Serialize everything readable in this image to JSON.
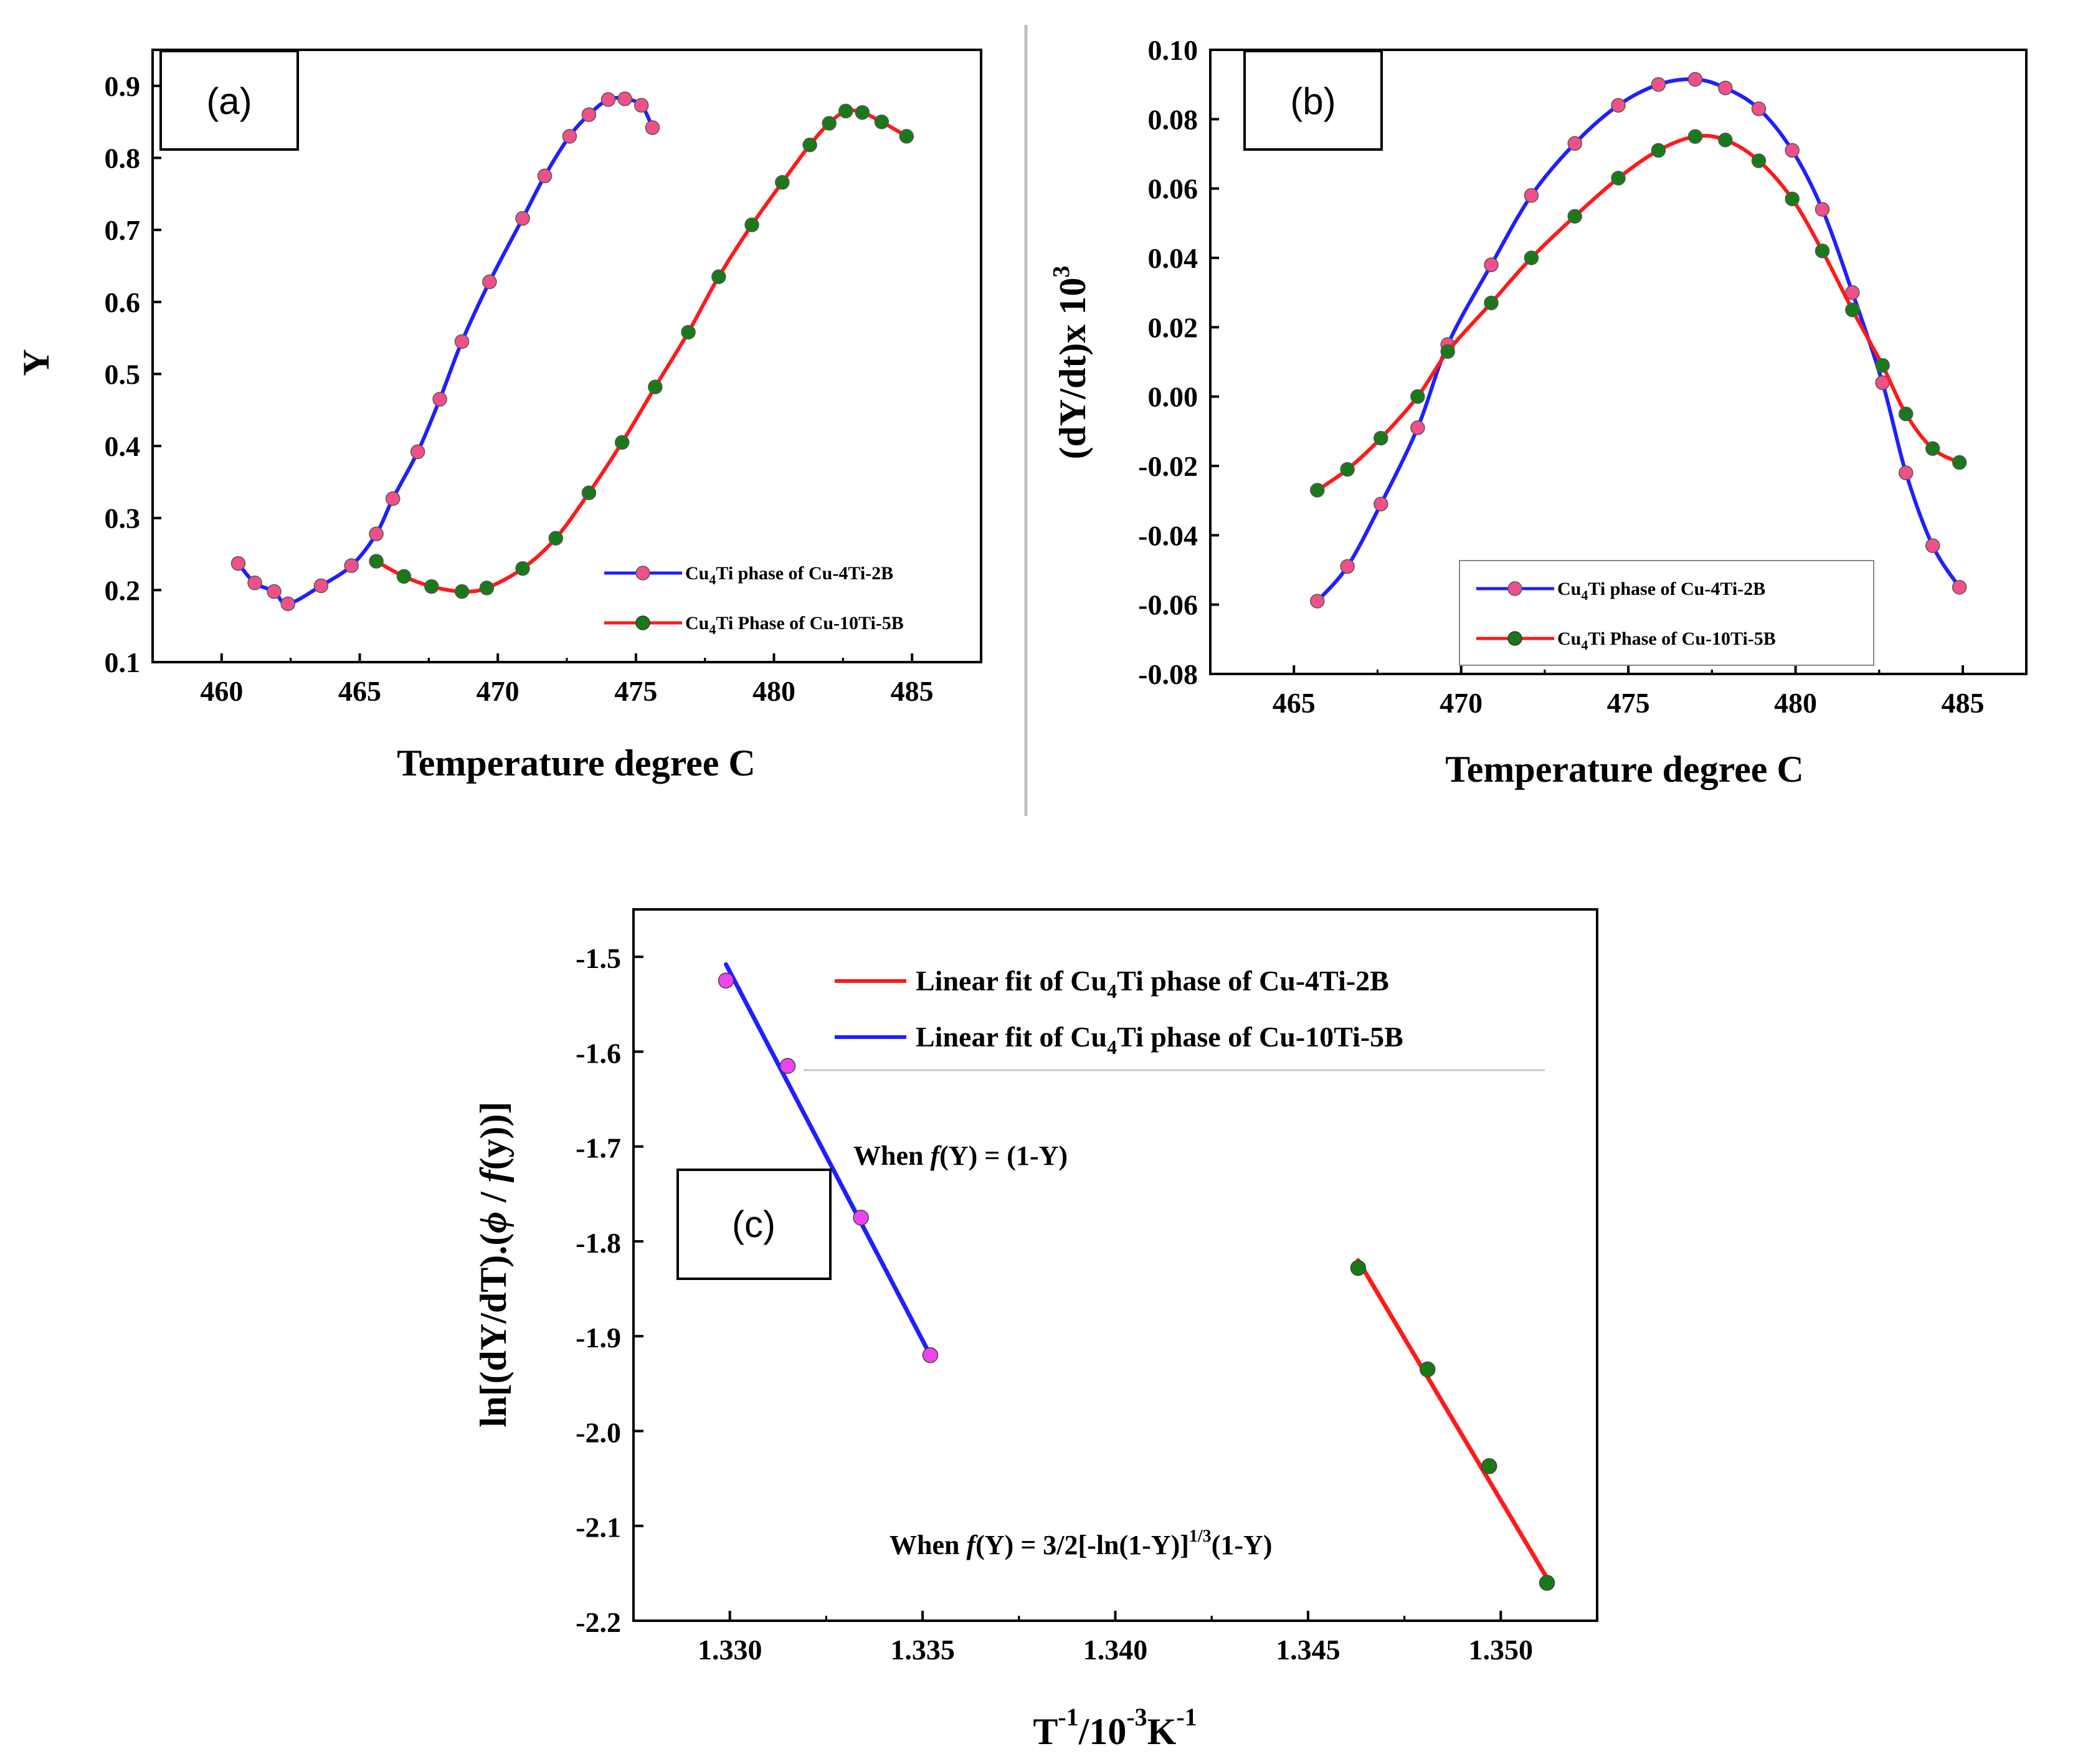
{
  "chart_data": [
    {
      "id": "a",
      "type": "line",
      "panel_label": "(a)",
      "xlabel": "Temperature degree C",
      "ylabel": "Y",
      "xlim": [
        457.5,
        487.5
      ],
      "ylim": [
        0.1,
        0.95
      ],
      "xticks": [
        460,
        465,
        470,
        475,
        480,
        485
      ],
      "xtick_labels": [
        "460",
        "465",
        "470",
        "475",
        "480",
        "485"
      ],
      "yticks": [
        0.1,
        0.2,
        0.3,
        0.4,
        0.5,
        0.6,
        0.7,
        0.8,
        0.9
      ],
      "ytick_labels": [
        "0.1",
        "0.2",
        "0.3",
        "0.4",
        "0.5",
        "0.6",
        "0.7",
        "0.8",
        "0.9"
      ],
      "legend": [
        {
          "pre": "Cu",
          "sub": "4",
          "post": "Ti phase of Cu-4Ti-2B"
        },
        {
          "pre": "Cu",
          "sub": "4",
          "post": "Ti Phase of Cu-10Ti-5B"
        }
      ],
      "series": [
        {
          "name": "Cu4Ti phase of Cu-4Ti-2B",
          "line_color": "#1f1fff",
          "marker_color": "#f0508a",
          "x": [
            460.6,
            461.2,
            461.9,
            462.4,
            463.6,
            464.7,
            465.6,
            466.2,
            467.1,
            467.9,
            468.7,
            469.7,
            470.9,
            471.7,
            472.6,
            473.3,
            474.0,
            474.6,
            475.2,
            475.6
          ],
          "y": [
            0.237,
            0.21,
            0.198,
            0.181,
            0.206,
            0.234,
            0.278,
            0.327,
            0.392,
            0.465,
            0.545,
            0.628,
            0.716,
            0.775,
            0.83,
            0.86,
            0.881,
            0.882,
            0.873,
            0.842
          ]
        },
        {
          "name": "Cu4Ti Phase of Cu-10Ti-5B",
          "line_color": "#ff1a1a",
          "marker_color": "#1a7a1a",
          "x": [
            465.6,
            466.6,
            467.6,
            468.7,
            469.6,
            470.9,
            472.1,
            473.3,
            474.5,
            475.7,
            476.9,
            478.0,
            479.2,
            480.3,
            481.3,
            482.0,
            482.6,
            483.2,
            483.9,
            484.8
          ],
          "y": [
            0.24,
            0.219,
            0.205,
            0.198,
            0.203,
            0.23,
            0.272,
            0.335,
            0.405,
            0.482,
            0.558,
            0.635,
            0.707,
            0.766,
            0.818,
            0.848,
            0.865,
            0.863,
            0.85,
            0.83
          ]
        }
      ]
    },
    {
      "id": "b",
      "type": "line",
      "panel_label": "(b)",
      "xlabel": "Temperature degree C",
      "ylabel": "(dY/dt)x 10",
      "ylabel_sup": "3",
      "xlim": [
        462.5,
        486.9
      ],
      "ylim": [
        -0.08,
        0.1
      ],
      "xticks": [
        465,
        470,
        475,
        480,
        485
      ],
      "xtick_labels": [
        "465",
        "470",
        "475",
        "480",
        "485"
      ],
      "yticks": [
        -0.08,
        -0.06,
        -0.04,
        -0.02,
        0.0,
        0.02,
        0.04,
        0.06,
        0.08,
        0.1
      ],
      "ytick_labels": [
        "-0.08",
        "-0.06",
        "-0.04",
        "-0.02",
        "0.00",
        "0.02",
        "0.04",
        "0.06",
        "0.08",
        "0.10"
      ],
      "legend": [
        {
          "pre": "Cu",
          "sub": "4",
          "post": "Ti phase of Cu-4Ti-2B"
        },
        {
          "pre": "Cu",
          "sub": "4",
          "post": "Ti Phase of Cu-10Ti-5B"
        }
      ],
      "series": [
        {
          "name": "Cu4Ti phase of Cu-4Ti-2B",
          "line_color": "#1f1fff",
          "marker_color": "#f0508a",
          "x": [
            465.7,
            466.6,
            467.6,
            468.7,
            469.6,
            470.9,
            472.1,
            473.4,
            474.7,
            475.9,
            477.0,
            477.9,
            478.9,
            479.9,
            480.8,
            481.7,
            482.6,
            483.3,
            484.1,
            484.9
          ],
          "y": [
            -0.059,
            -0.049,
            -0.031,
            -0.009,
            0.015,
            0.038,
            0.058,
            0.073,
            0.084,
            0.09,
            0.0915,
            0.089,
            0.083,
            0.071,
            0.054,
            0.03,
            0.004,
            -0.022,
            -0.043,
            -0.055
          ]
        },
        {
          "name": "Cu4Ti Phase of Cu-10Ti-5B",
          "line_color": "#ff1a1a",
          "marker_color": "#1a7a1a",
          "x": [
            465.7,
            466.6,
            467.6,
            468.7,
            469.6,
            470.9,
            472.1,
            473.4,
            474.7,
            475.9,
            477.0,
            477.9,
            478.9,
            479.9,
            480.8,
            481.7,
            482.6,
            483.3,
            484.1,
            484.9
          ],
          "y": [
            -0.027,
            -0.021,
            -0.012,
            0.0,
            0.013,
            0.027,
            0.04,
            0.052,
            0.063,
            0.071,
            0.075,
            0.074,
            0.068,
            0.057,
            0.042,
            0.025,
            0.009,
            -0.005,
            -0.015,
            -0.019
          ]
        }
      ]
    },
    {
      "id": "c",
      "type": "scatter",
      "panel_label": "(c)",
      "xlabel_main": "T",
      "xlabel_sup1": "-1",
      "xlabel_mid": "/10",
      "xlabel_sup2": "-3",
      "xlabel_unit": "K",
      "xlabel_sup3": "-1",
      "ylabel_pre": "ln[(dY/dT).(",
      "ylabel_phi": "ϕ",
      "ylabel_mid": " / ",
      "ylabel_f": "f",
      "ylabel_post": "(y))]",
      "xlim": [
        1.3275,
        1.3525
      ],
      "ylim": [
        -2.2,
        -1.45
      ],
      "xticks": [
        1.33,
        1.335,
        1.34,
        1.345,
        1.35
      ],
      "xtick_labels": [
        "1.330",
        "1.335",
        "1.340",
        "1.345",
        "1.350"
      ],
      "yticks": [
        -2.2,
        -2.1,
        -2.0,
        -1.9,
        -1.8,
        -1.7,
        -1.6,
        -1.5
      ],
      "ytick_labels": [
        "-2.2",
        "-2.1",
        "-2.0",
        "-1.9",
        "-1.8",
        "-1.7",
        "-1.6",
        "-1.5"
      ],
      "legend": [
        {
          "pre": "Linear fit of Cu",
          "sub": "4",
          "post": "Ti phase of Cu-4Ti-2B",
          "color": "#ff1a1a"
        },
        {
          "pre": "Linear fit of Cu",
          "sub": "4",
          "post": "Ti phase of Cu-10Ti-5B",
          "color": "#1f1fff"
        }
      ],
      "annotations": [
        {
          "pre": "When ",
          "f": "f",
          "post": "(Y) = (1-Y)"
        },
        {
          "pre": "When ",
          "f": "f",
          "post": "(Y) = 3/2[-ln(1-Y)]",
          "sup": "1/3",
          "tail": "(1-Y)"
        }
      ],
      "series": [
        {
          "name": "Cu4Ti phase of Cu-4Ti-2B (points)",
          "marker_color": "#ee44ee",
          "x": [
            1.3299,
            1.3315,
            1.3334,
            1.3352
          ],
          "y": [
            -1.525,
            -1.615,
            -1.775,
            -1.92
          ],
          "fit_color": "#1f1fff",
          "fit_x": [
            1.3299,
            1.3352
          ],
          "fit_y": [
            -1.508,
            -1.92
          ]
        },
        {
          "name": "Cu4Ti phase of Cu-10Ti-5B (points)",
          "marker_color": "#1a7a1a",
          "x": [
            1.3463,
            1.3481,
            1.3497,
            1.3512
          ],
          "y": [
            -1.828,
            -1.935,
            -2.037,
            -2.16
          ],
          "fit_color": "#ff1a1a",
          "fit_x": [
            1.3463,
            1.3512
          ],
          "fit_y": [
            -1.82,
            -2.155
          ]
        }
      ]
    }
  ]
}
